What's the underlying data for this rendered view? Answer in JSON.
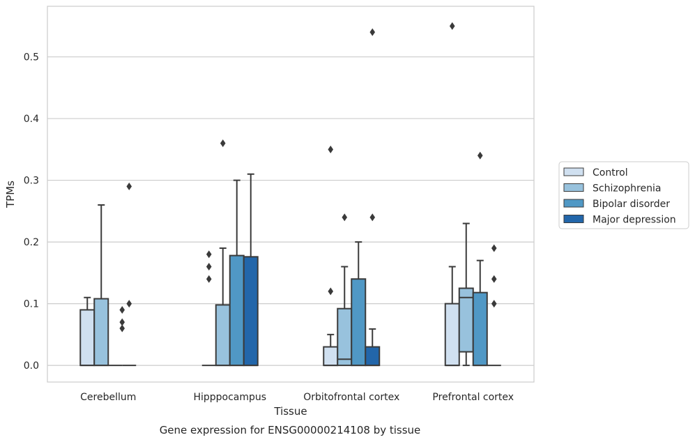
{
  "chart_data": {
    "type": "box",
    "caption": "Gene expression for ENSG00000214108 by tissue",
    "xlabel": "Tissue",
    "ylabel": "TPMs",
    "ylim": [
      -0.027,
      0.582
    ],
    "yticks": [
      0.0,
      0.1,
      0.2,
      0.3,
      0.4,
      0.5
    ],
    "ytick_labels": [
      "0.0",
      "0.1",
      "0.2",
      "0.3",
      "0.4",
      "0.5"
    ],
    "grid": "horizontal",
    "legend_position": "right-outside",
    "categories": [
      "Cerebellum",
      "Hipppocampus",
      "Orbitofrontal cortex",
      "Prefrontal cortex"
    ],
    "series": [
      {
        "name": "Control",
        "color": "#d0e0f0",
        "boxes": [
          {
            "whislo": 0.0,
            "q1": 0.0,
            "med": 0.0,
            "q3": 0.09,
            "whishi": 0.11,
            "fliers": []
          },
          {
            "whislo": 0.0,
            "q1": 0.0,
            "med": 0.0,
            "q3": 0.0,
            "whishi": 0.0,
            "fliers": [
              0.14,
              0.16,
              0.18
            ]
          },
          {
            "whislo": 0.0,
            "q1": 0.0,
            "med": 0.0,
            "q3": 0.03,
            "whishi": 0.05,
            "fliers": [
              0.12,
              0.35
            ]
          },
          {
            "whislo": 0.0,
            "q1": 0.0,
            "med": 0.0,
            "q3": 0.1,
            "whishi": 0.16,
            "fliers": [
              0.55
            ]
          }
        ]
      },
      {
        "name": "Schizophrenia",
        "color": "#98c2dd",
        "boxes": [
          {
            "whislo": 0.0,
            "q1": 0.0,
            "med": 0.0,
            "q3": 0.108,
            "whishi": 0.26,
            "fliers": []
          },
          {
            "whislo": 0.0,
            "q1": 0.0,
            "med": 0.0,
            "q3": 0.098,
            "whishi": 0.19,
            "fliers": [
              0.36
            ]
          },
          {
            "whislo": 0.0,
            "q1": 0.0,
            "med": 0.01,
            "q3": 0.092,
            "whishi": 0.16,
            "fliers": [
              0.24
            ]
          },
          {
            "whislo": 0.0,
            "q1": 0.022,
            "med": 0.11,
            "q3": 0.125,
            "whishi": 0.23,
            "fliers": []
          }
        ]
      },
      {
        "name": "Bipolar disorder",
        "color": "#5098c5",
        "boxes": [
          {
            "whislo": 0.0,
            "q1": 0.0,
            "med": 0.0,
            "q3": 0.0,
            "whishi": 0.0,
            "fliers": []
          },
          {
            "whislo": 0.0,
            "q1": 0.0,
            "med": 0.0,
            "q3": 0.178,
            "whishi": 0.3,
            "fliers": []
          },
          {
            "whislo": 0.0,
            "q1": 0.0,
            "med": 0.0,
            "q3": 0.14,
            "whishi": 0.2,
            "fliers": []
          },
          {
            "whislo": 0.0,
            "q1": 0.0,
            "med": 0.0,
            "q3": 0.118,
            "whishi": 0.17,
            "fliers": [
              0.34
            ]
          }
        ]
      },
      {
        "name": "Major depression",
        "color": "#2266aa",
        "boxes": [
          {
            "whislo": 0.0,
            "q1": 0.0,
            "med": 0.0,
            "q3": 0.0,
            "whishi": 0.0,
            "fliers": [
              0.1,
              0.29
            ]
          },
          {
            "whislo": 0.0,
            "q1": 0.0,
            "med": 0.0,
            "q3": 0.176,
            "whishi": 0.31,
            "fliers": []
          },
          {
            "whislo": 0.0,
            "q1": 0.0,
            "med": 0.0,
            "q3": 0.03,
            "whishi": 0.059,
            "fliers": [
              0.24,
              0.54
            ]
          },
          {
            "whislo": 0.0,
            "q1": 0.0,
            "med": 0.0,
            "q3": 0.0,
            "whishi": 0.0,
            "fliers": [
              0.1,
              0.14,
              0.19
            ]
          }
        ]
      }
    ],
    "extra_fliers": [
      {
        "category": "Cerebellum",
        "values": [
          0.06,
          0.07,
          0.09
        ],
        "between_series": [
          "Bipolar disorder",
          "Major depression"
        ]
      }
    ]
  }
}
